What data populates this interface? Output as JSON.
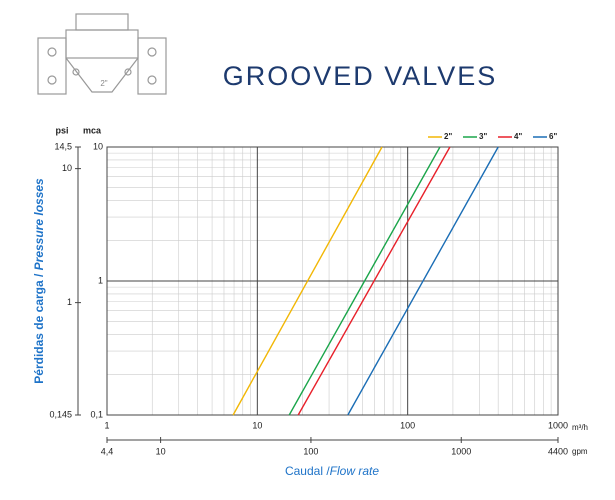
{
  "title": "GROOVED VALVES",
  "icon_label": "2\"",
  "chart_data": {
    "type": "line",
    "log_x": true,
    "log_y": true,
    "grid": true,
    "minor_grid": true,
    "legend": "top-right",
    "ylabel": [
      "Pérdidas de carga / ",
      "Pressure losses"
    ],
    "xlabel": [
      "Caudal /",
      "Flow rate"
    ],
    "yunit": "mca",
    "y2unit": "psi",
    "xunit": "m³/h",
    "x2unit": "gpm",
    "xlim": [
      1,
      1000
    ],
    "xticks": [
      1,
      10,
      100,
      1000
    ],
    "x2lim": [
      4.4,
      4400
    ],
    "x2ticks": [
      {
        "value": 4.4,
        "label": "4,4"
      },
      10,
      100,
      1000,
      4400
    ],
    "ylim": [
      0.1,
      10
    ],
    "yticks": [
      {
        "value": 0.1,
        "label": "0,1"
      },
      1,
      10
    ],
    "y2lim": [
      0.145,
      14.5
    ],
    "y2ticks": [
      {
        "value": 0.145,
        "label": "0,145"
      },
      1,
      10,
      {
        "value": 14.5,
        "label": "14,5"
      }
    ],
    "series": [
      {
        "name": "2\"",
        "color": "#f2b705",
        "x": [
          6.9,
          67.5
        ],
        "values": [
          0.1,
          10
        ]
      },
      {
        "name": "3\"",
        "color": "#1aa54a",
        "x": [
          16.3,
          164
        ],
        "values": [
          0.1,
          10
        ]
      },
      {
        "name": "4\"",
        "color": "#e8202a",
        "x": [
          18.7,
          191
        ],
        "values": [
          0.1,
          10
        ]
      },
      {
        "name": "6\"",
        "color": "#1a6db5",
        "x": [
          40,
          400
        ],
        "values": [
          0.1,
          10
        ]
      }
    ]
  }
}
